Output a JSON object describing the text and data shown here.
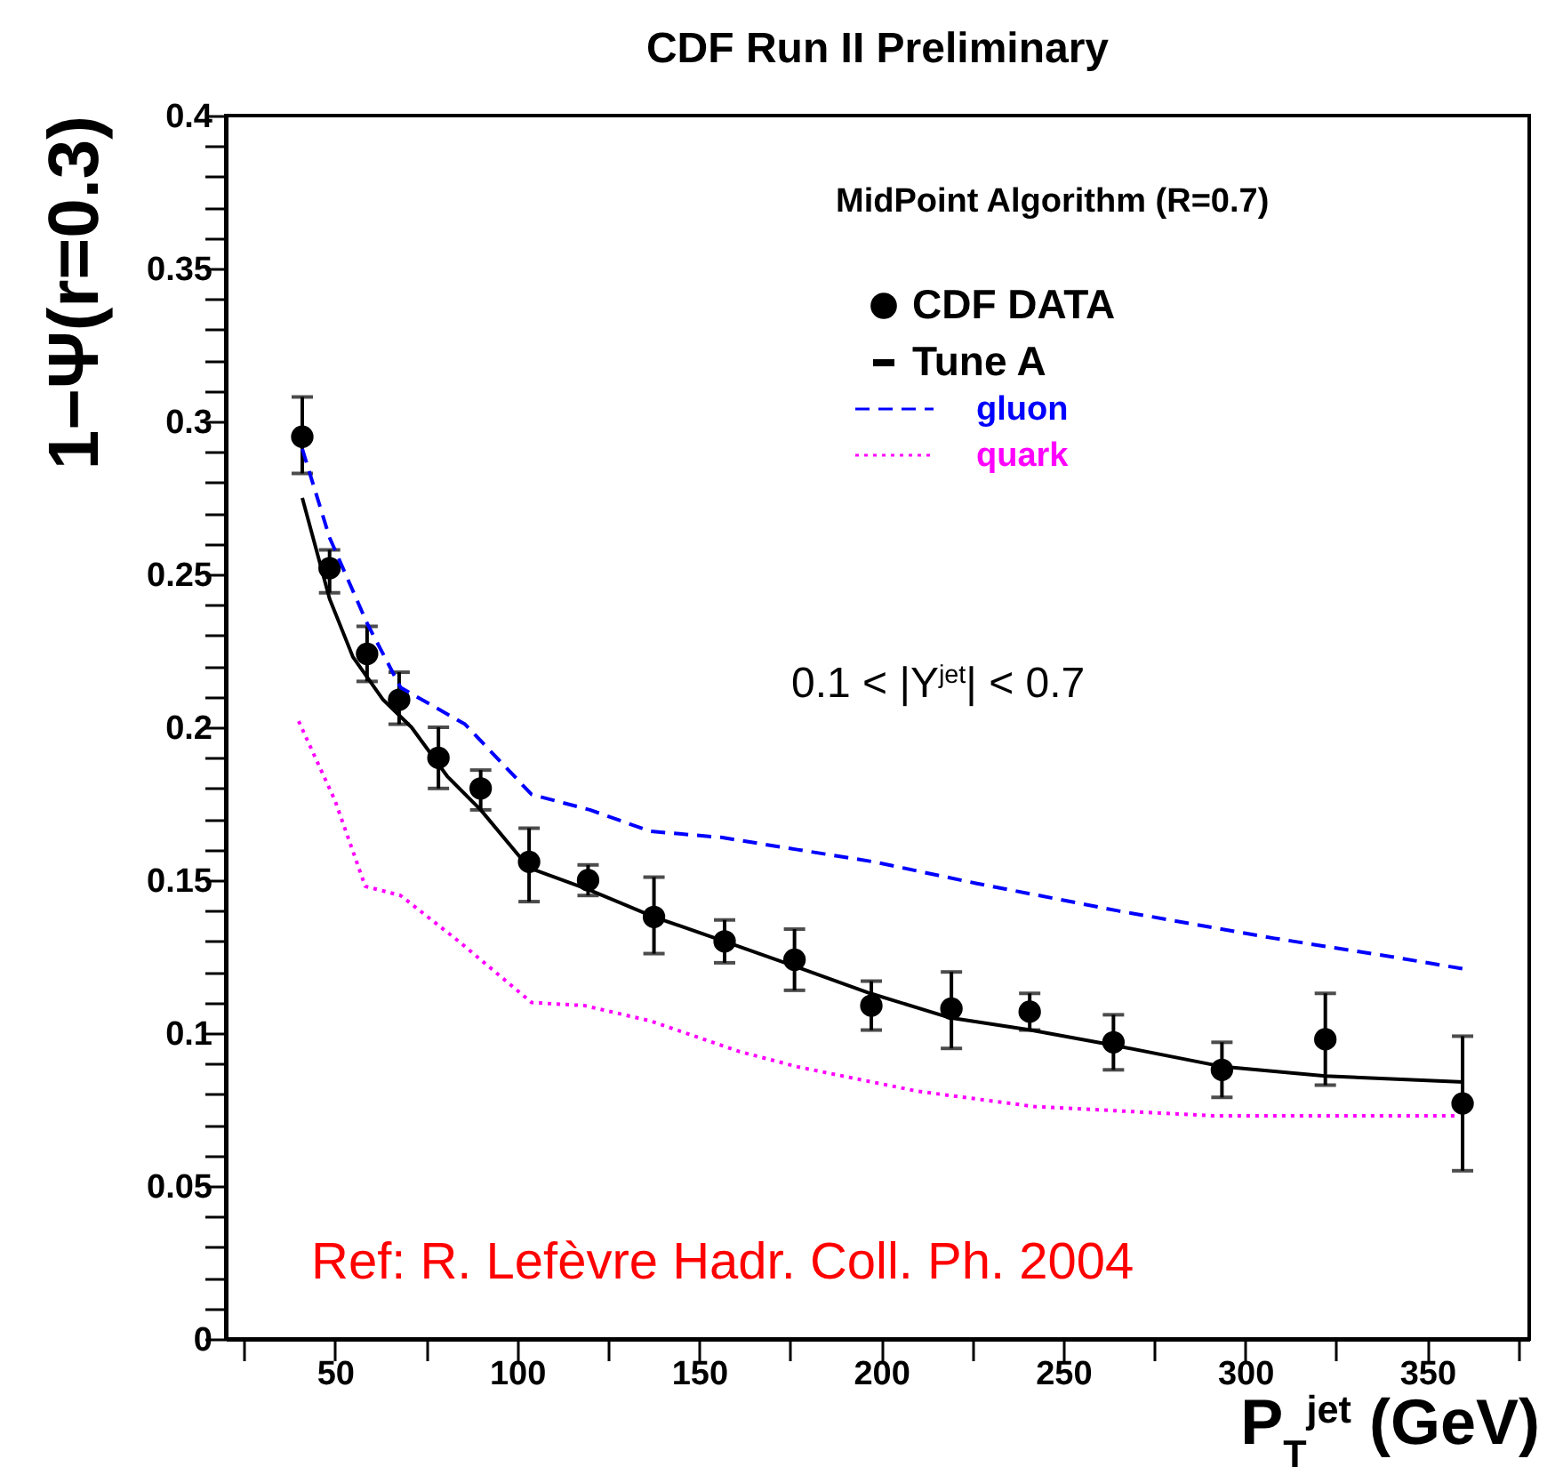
{
  "chart_data": {
    "type": "scatter",
    "title": "CDF Run II Preliminary",
    "xlabel": "P$_{T}$$^{jet}$ (GeV)",
    "ylabel": "1−Ψ(r=0.3)",
    "annotations": [
      "MidPoint Algorithm (R=0.7)",
      "0.1 < |Y$^{jet}$| < 0.7",
      "Ref: R. Lefèvre Hadr. Coll. Ph. 2004"
    ],
    "xlim": [
      20,
      378
    ],
    "ylim": [
      0,
      0.4
    ],
    "xticks": [
      {
        "value": 25,
        "label": null
      },
      50,
      {
        "value": 75,
        "label": null
      },
      100,
      {
        "value": 125,
        "label": null
      },
      150,
      {
        "value": 175,
        "label": null
      },
      200,
      {
        "value": 225,
        "label": null
      },
      250,
      {
        "value": 275,
        "label": null
      },
      300,
      {
        "value": 325,
        "label": null
      },
      350,
      {
        "value": 375,
        "label": null
      }
    ],
    "yticks": [
      0,
      {
        "value": 0.01,
        "label": null
      },
      {
        "value": 0.02,
        "label": null
      },
      {
        "value": 0.03,
        "label": null
      },
      {
        "value": 0.04,
        "label": null
      },
      0.05,
      {
        "value": 0.06,
        "label": null
      },
      {
        "value": 0.07,
        "label": null
      },
      {
        "value": 0.08,
        "label": null
      },
      {
        "value": 0.09,
        "label": null
      },
      0.1,
      {
        "value": 0.11,
        "label": null
      },
      {
        "value": 0.12,
        "label": null
      },
      {
        "value": 0.13,
        "label": null
      },
      {
        "value": 0.14,
        "label": null
      },
      0.15,
      {
        "value": 0.16,
        "label": null
      },
      {
        "value": 0.17,
        "label": null
      },
      {
        "value": 0.18,
        "label": null
      },
      {
        "value": 0.19,
        "label": null
      },
      0.2,
      {
        "value": 0.21,
        "label": null
      },
      {
        "value": 0.22,
        "label": null
      },
      {
        "value": 0.23,
        "label": null
      },
      {
        "value": 0.24,
        "label": null
      },
      0.25,
      {
        "value": 0.26,
        "label": null
      },
      {
        "value": 0.27,
        "label": null
      },
      {
        "value": 0.28,
        "label": null
      },
      {
        "value": 0.29,
        "label": null
      },
      0.3,
      {
        "value": 0.31,
        "label": null
      },
      {
        "value": 0.32,
        "label": null
      },
      {
        "value": 0.33,
        "label": null
      },
      {
        "value": 0.34,
        "label": null
      },
      0.35,
      {
        "value": 0.36,
        "label": null
      },
      {
        "value": 0.37,
        "label": null
      },
      {
        "value": 0.38,
        "label": null
      },
      {
        "value": 0.39,
        "label": null
      },
      0.4
    ],
    "grid": false,
    "legend": "top right",
    "series": [
      {
        "name": "CDF DATA",
        "type": "scatter",
        "marker": "circle",
        "color": "#000000",
        "x": [
          41,
          48.5,
          58.8,
          67.6,
          78.4,
          90,
          103.3,
          119.5,
          137.6,
          157,
          176.2,
          197.3,
          219.3,
          240.8,
          263.8,
          293.6,
          322,
          359.7
        ],
        "values": [
          0.295,
          0.252,
          0.224,
          0.209,
          0.19,
          0.18,
          0.156,
          0.15,
          0.138,
          0.13,
          0.124,
          0.109,
          0.108,
          0.107,
          0.097,
          0.088,
          0.098,
          0.077
        ],
        "errors": [
          [
            0.283,
            0.308
          ],
          [
            0.244,
            0.258
          ],
          [
            0.215,
            0.233
          ],
          [
            0.201,
            0.218
          ],
          [
            0.18,
            0.2
          ],
          [
            0.173,
            0.186
          ],
          [
            0.143,
            0.167
          ],
          [
            0.145,
            0.155
          ],
          [
            0.126,
            0.151
          ],
          [
            0.123,
            0.137
          ],
          [
            0.114,
            0.134
          ],
          [
            0.101,
            0.117
          ],
          [
            0.095,
            0.12
          ],
          [
            0.101,
            0.113
          ],
          [
            0.088,
            0.106
          ],
          [
            0.079,
            0.097
          ],
          [
            0.083,
            0.113
          ],
          [
            0.055,
            0.099
          ]
        ]
      },
      {
        "name": "Tune A",
        "type": "line",
        "line_style": "solid",
        "color": "#000000",
        "x": [
          41,
          48.5,
          54.9,
          63.2,
          71,
          80.8,
          90,
          103.3,
          119.5,
          137.6,
          157,
          176,
          197,
          219,
          241,
          264,
          294,
          322,
          360
        ],
        "values": [
          0.275,
          0.242,
          0.223,
          0.209,
          0.2,
          0.184,
          0.173,
          0.154,
          0.147,
          0.138,
          0.13,
          0.122,
          0.113,
          0.105,
          0.101,
          0.096,
          0.089,
          0.086,
          0.084
        ]
      },
      {
        "name": "gluon",
        "type": "line",
        "line_style": "dashed",
        "color": "#0000ff",
        "x": [
          41,
          48.5,
          58.8,
          68,
          85.7,
          104,
          120,
          136.6,
          156,
          177,
          198,
          226,
          265,
          308,
          340,
          360
        ],
        "values": [
          0.291,
          0.262,
          0.234,
          0.213,
          0.201,
          0.178,
          0.173,
          0.166,
          0.164,
          0.16,
          0.156,
          0.149,
          0.14,
          0.131,
          0.125,
          0.121
        ]
      },
      {
        "name": "quark",
        "type": "line",
        "line_style": "dotted",
        "color": "#ff00ff",
        "x": [
          40,
          50,
          58.3,
          68,
          84,
          104,
          118.5,
          136.6,
          161,
          177,
          210,
          242,
          291,
          358
        ],
        "values": [
          0.202,
          0.176,
          0.148,
          0.145,
          0.13,
          0.11,
          0.109,
          0.104,
          0.094,
          0.089,
          0.081,
          0.076,
          0.073,
          0.073
        ]
      }
    ]
  }
}
